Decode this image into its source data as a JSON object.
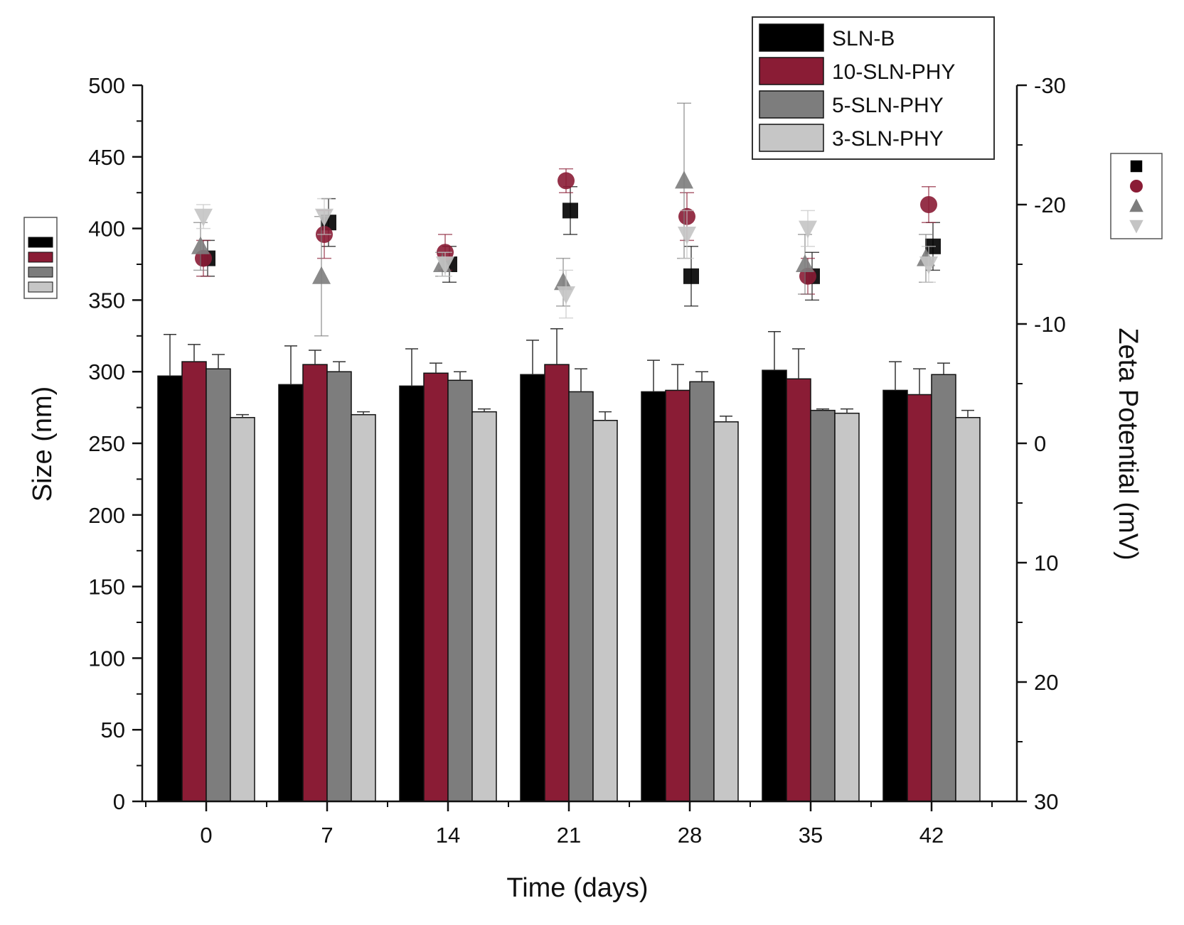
{
  "chart_data": {
    "type": "bar",
    "xlabel": "Time (days)",
    "ylabel": "Size (nm)",
    "y2label": "Zeta Potential (mV)",
    "categories": [
      "0",
      "7",
      "14",
      "21",
      "28",
      "35",
      "42"
    ],
    "ylim": [
      0,
      500
    ],
    "yticks": [
      "0",
      "50",
      "100",
      "150",
      "200",
      "250",
      "300",
      "350",
      "400",
      "450",
      "500"
    ],
    "y2lim": [
      30,
      -30
    ],
    "y2ticks": [
      "30",
      "20",
      "10",
      "0",
      "-10",
      "-20",
      "-30"
    ],
    "legend_position": "top-right",
    "bar_series": [
      {
        "name": "SLN-B",
        "color": "#000000",
        "values": [
          297,
          291,
          290,
          298,
          286,
          301,
          287
        ],
        "errors": [
          29,
          27,
          26,
          24,
          22,
          27,
          20
        ]
      },
      {
        "name": "10-SLN-PHY",
        "color": "#8a1c35",
        "values": [
          307,
          305,
          299,
          305,
          287,
          295,
          284
        ],
        "errors": [
          12,
          10,
          7,
          25,
          18,
          21,
          18
        ]
      },
      {
        "name": "5-SLN-PHY",
        "color": "#7d7d7d",
        "values": [
          302,
          300,
          294,
          286,
          293,
          273,
          298
        ],
        "errors": [
          10,
          7,
          6,
          16,
          7,
          1,
          8
        ]
      },
      {
        "name": "3-SLN-PHY",
        "color": "#c6c6c6",
        "values": [
          268,
          270,
          272,
          266,
          265,
          271,
          268
        ],
        "errors": [
          2,
          2,
          2,
          6,
          4,
          3,
          5
        ]
      }
    ],
    "zeta_series": [
      {
        "name": "SLN-B",
        "marker": "square",
        "color": "#000000",
        "values": [
          -15.5,
          -18.5,
          -15,
          -19.5,
          -14,
          -14,
          -16.5
        ],
        "errors": [
          1.5,
          2,
          1.5,
          2,
          2.5,
          2,
          2
        ]
      },
      {
        "name": "10-SLN-PHY",
        "marker": "circle",
        "color": "#8a1c35",
        "values": [
          -15.5,
          -17.5,
          -16,
          -22,
          -19,
          -14,
          -20
        ],
        "errors": [
          1.5,
          2,
          1.5,
          1,
          2,
          1.5,
          1.5
        ]
      },
      {
        "name": "5-SLN-PHY",
        "marker": "triangle-up",
        "color": "#7d7d7d",
        "values": [
          -16.5,
          -14,
          -15,
          -13.5,
          -22,
          -15,
          -15.5
        ],
        "errors": [
          2,
          5,
          1,
          2,
          6.5,
          2.5,
          2
        ]
      },
      {
        "name": "3-SLN-PHY",
        "marker": "triangle-down",
        "color": "#c4c4c4",
        "values": [
          -19,
          -19,
          -15,
          -12.5,
          -17.5,
          -18,
          -15
        ],
        "errors": [
          1,
          1.5,
          1,
          2,
          2,
          1.5,
          1.5
        ]
      }
    ]
  }
}
